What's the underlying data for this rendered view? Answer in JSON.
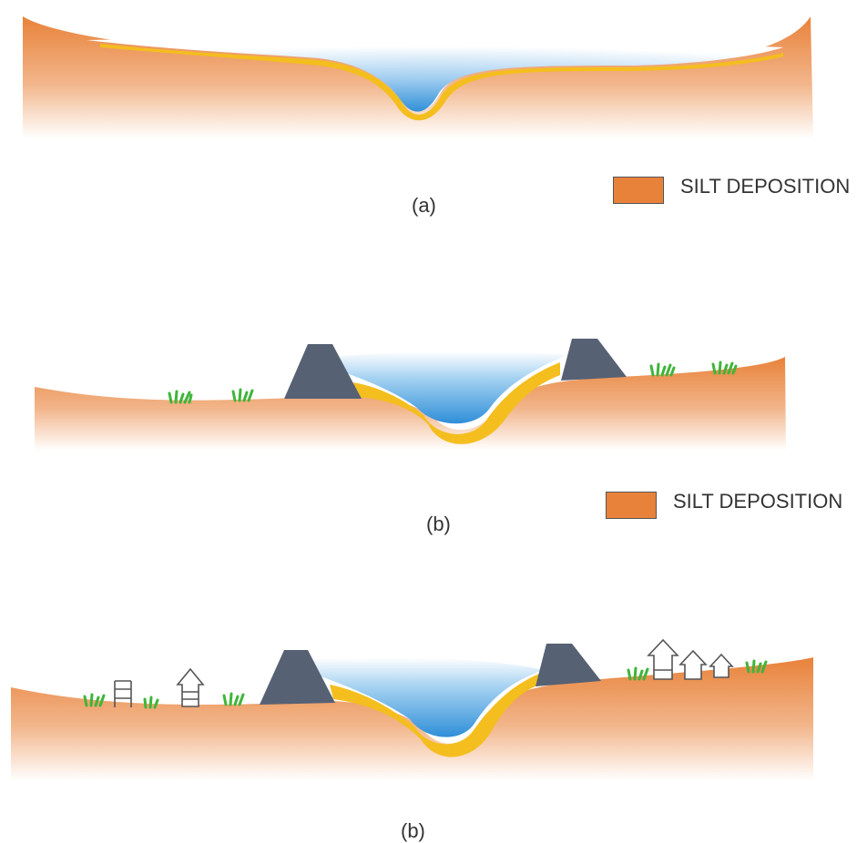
{
  "colors": {
    "silt": "#e8823a",
    "sand": "#f4be1e",
    "water": "#3d9be0",
    "embankment": "#566174",
    "grass": "#3fb53a",
    "house_outline": "#555555"
  },
  "panels": [
    {
      "caption": "(a)",
      "legend": {
        "label": "SILT DEPOSITION"
      },
      "icons": [
        "silt-bank-icon",
        "water-channel-icon"
      ]
    },
    {
      "caption": "(b)",
      "legend": {
        "label": "SILT DEPOSITION"
      },
      "icons": [
        "embankment-icon",
        "grass-icon",
        "water-channel-icon"
      ]
    },
    {
      "caption": "(b)",
      "icons": [
        "embankment-icon",
        "grass-icon",
        "house-icon",
        "ladder-icon",
        "water-channel-icon"
      ]
    }
  ]
}
